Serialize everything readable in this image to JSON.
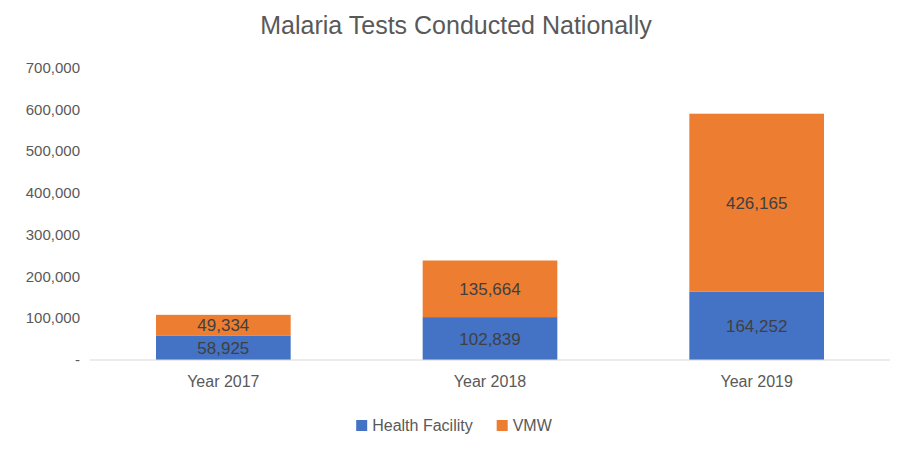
{
  "chart_data": {
    "type": "bar",
    "title": "Malaria Tests Conducted Nationally",
    "categories": [
      "Year 2017",
      "Year 2018",
      "Year 2019"
    ],
    "series": [
      {
        "name": "Health Facility",
        "color": "#4472c4",
        "values": [
          58925,
          102839,
          164252
        ],
        "value_labels": [
          "58,925",
          "102,839",
          "164,252"
        ]
      },
      {
        "name": "VMW",
        "color": "#ed7d31",
        "values": [
          49334,
          135664,
          426165
        ],
        "value_labels": [
          "49,334",
          "135,664",
          "426,165"
        ]
      }
    ],
    "ylim": [
      0,
      700000
    ],
    "yticks": [
      {
        "value": 0,
        "label": "-"
      },
      {
        "value": 100000,
        "label": "100,000"
      },
      {
        "value": 200000,
        "label": "200,000"
      },
      {
        "value": 300000,
        "label": "300,000"
      },
      {
        "value": 400000,
        "label": "400,000"
      },
      {
        "value": 500000,
        "label": "500,000"
      },
      {
        "value": 600000,
        "label": "600,000"
      },
      {
        "value": 700000,
        "label": "700,000"
      }
    ],
    "stacked": true,
    "data_labels": true,
    "grid": false,
    "legend": "bottom"
  }
}
